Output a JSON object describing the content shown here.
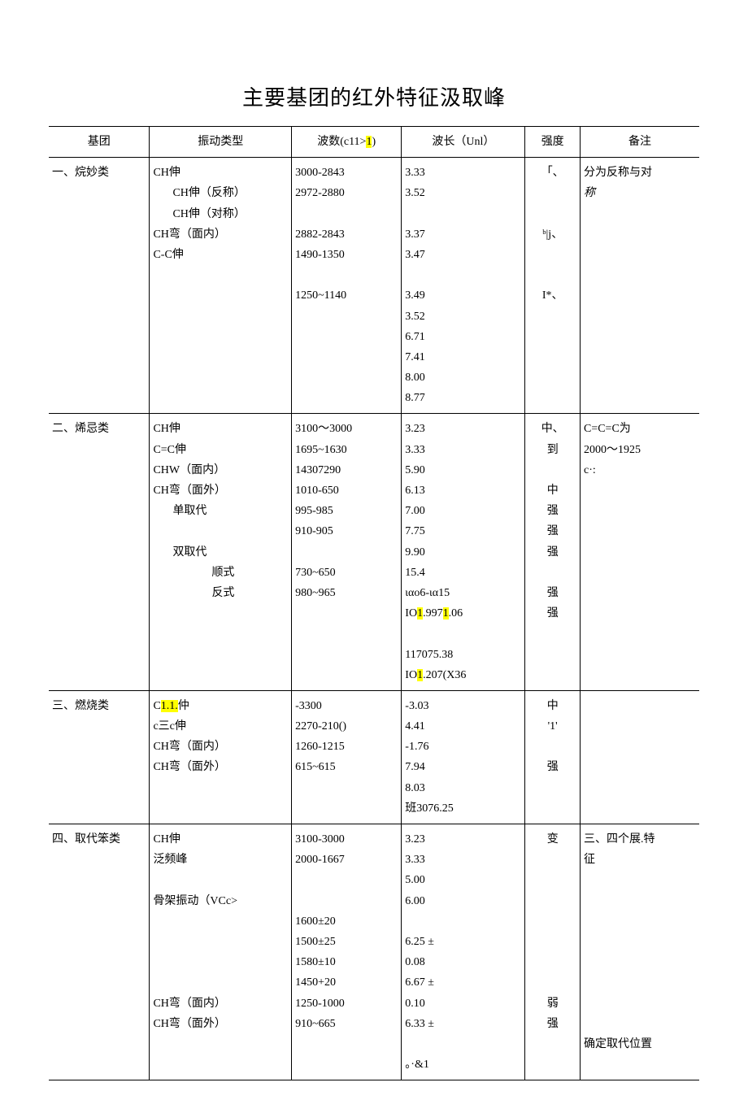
{
  "title": "主要基团的红外特征汲取峰",
  "header": {
    "group": "基团",
    "vtype": "振动类型",
    "wavenum_pre": "波数(c11>",
    "wavenum_hl": "1",
    "wavenum_post": ")",
    "wavelen": "波长（Unl）",
    "intensity": "强度",
    "remark": "备注"
  },
  "rows": [
    {
      "group": "一、烷妙类",
      "vtype_lines": [
        {
          "indent": 0,
          "text": "CH伸"
        },
        {
          "indent": 1,
          "text": "CH伸（反称）"
        },
        {
          "indent": 1,
          "text": "CH伸（对称）"
        },
        {
          "indent": 0,
          "text": "CH弯（面内）"
        },
        {
          "indent": 0,
          "text": "C-C伸"
        }
      ],
      "wavenum": "3000-2843\n2972-2880\n\n2882-2843\n1490-1350\n\n1250~1140",
      "wavelen": "3.33\n3.52\n\n3.37\n3.47\n\n3.49\n3.52\n6.71\n7.41\n8.00\n8.77",
      "intensity": "「、\n\n\nᵇ|j、\n\n\nI*、",
      "remark_pre": "分为反称与对",
      "remark_ital": "称"
    },
    {
      "group": "二、烯忌类",
      "vtype_lines": [
        {
          "indent": 0,
          "text": "CH伸"
        },
        {
          "indent": 0,
          "text": "C=C伸"
        },
        {
          "indent": 0,
          "text": "CHW（面内）"
        },
        {
          "indent": 0,
          "text": "CH弯（面外）"
        },
        {
          "indent": 1,
          "text": "单取代"
        },
        {
          "indent": 0,
          "text": ""
        },
        {
          "indent": 1,
          "text": "双取代"
        },
        {
          "indent": 2,
          "text": "顺式"
        },
        {
          "indent": 2,
          "text": "反式"
        }
      ],
      "wavenum": "3100～3000\n1695~1630\n14307290\n1010-650\n    995-985\n    910-905\n\n730~650\n980~965",
      "wavelen_parts": [
        {
          "text": "3.23\n3.33\n5.90\n6.13\n7.00\n7.75\n9.90\n15.4\nιαο6-ια15"
        },
        {
          "text": "IO",
          "hl": "1",
          "text2": ".997",
          "hl2": "1",
          "text3": ".06"
        },
        {
          "text": "\n\n117075.38"
        },
        {
          "text": "IO",
          "hl": "1",
          "text2": ".207(X36"
        }
      ],
      "intensity": "中、\n到\n\n中\n强\n强\n强\n\n强\n强",
      "remark": "C=C=C为\n2000～1925\nc·:"
    },
    {
      "group": "三、燃烧类",
      "vtype_lines_custom": true,
      "vtype_l1_pre": "C",
      "vtype_l1_hl": "1.1.",
      "vtype_l1_post": "仲",
      "vtype_l2_pre": "c三c伸",
      "vtype_l3": "CH弯（面内）",
      "vtype_l4": "CH弯（面外）",
      "wavenum": "    -3300\n2270-210()\n1260-1215\n615~615",
      "wavelen": "    -3.03\n4.41\n-1.76\n7.94\n8.03\n班3076.25",
      "intensity": "中\n'1'\n\n强",
      "remark": ""
    },
    {
      "group": "四、取代笨类",
      "vtype_lines": [
        {
          "indent": 0,
          "text": "CH伸"
        },
        {
          "indent": 0,
          "text": "泛频峰"
        },
        {
          "indent": 0,
          "text": ""
        },
        {
          "indent": 0,
          "text": "骨架振动（VCc>"
        },
        {
          "indent": 0,
          "text": ""
        },
        {
          "indent": 0,
          "text": ""
        },
        {
          "indent": 0,
          "text": ""
        },
        {
          "indent": 0,
          "text": ""
        },
        {
          "indent": 0,
          "text": "CH弯（面内）"
        },
        {
          "indent": 0,
          "text": "CH弯（面外）"
        }
      ],
      "wavenum": "3100-3000\n2000-1667\n\n\n1600±20\n1500±25\n1580±10\n1450+20\n1250-1000\n910~665",
      "wavelen": "3.23\n3.33\n5.00\n6.00\n\n6.25        ±\n0.08\n6.67        ±\n0.10\n6.33        ±\n\n。·&1",
      "intensity": "变\n\n\n\n\n\n\n\n弱\n强",
      "remark": "三、四个展.特\n征\n\n\n\n\n\n\n\n\n确定取代位置"
    }
  ]
}
